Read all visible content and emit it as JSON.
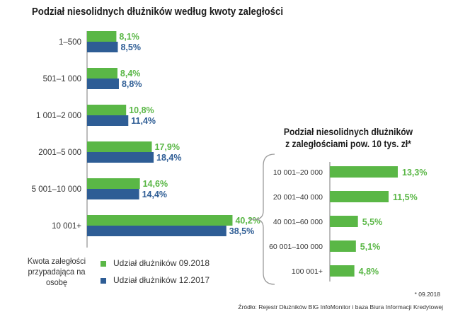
{
  "chart_data": [
    {
      "type": "bar",
      "orientation": "horizontal",
      "title": "Podział niesolidnych dłużników według kwoty zaległości",
      "categories": [
        "1–500",
        "501–1 000",
        "1 001–2 000",
        "2001–5 000",
        "5 001–10 000",
        "10 001+"
      ],
      "series": [
        {
          "name": "Udział dłużników 09.2018",
          "color": "#5ab746",
          "values": [
            8.1,
            8.4,
            10.8,
            17.9,
            14.6,
            40.2
          ],
          "labels": [
            "8,1%",
            "8,4%",
            "10,8%",
            "17,9%",
            "14,6%",
            "40,2%"
          ]
        },
        {
          "name": "Udział dłużników 12.2017",
          "color": "#2e5d95",
          "values": [
            8.5,
            8.8,
            11.4,
            18.4,
            14.4,
            38.5
          ],
          "labels": [
            "8,5%",
            "8,8%",
            "11,4%",
            "18,4%",
            "14,4%",
            "38,5%"
          ]
        }
      ],
      "xlim": [
        0,
        45
      ],
      "legend_title": "Kwota zaległości przypadająca na osobę"
    },
    {
      "type": "bar",
      "orientation": "horizontal",
      "title": "Podział niesolidnych dłużników z zaległościami pow. 10 tys. zł*",
      "title_lines": [
        "Podział niesolidnych dłużników",
        "z zaległościami pow. 10 tys. zł*"
      ],
      "categories": [
        "10 001–20 000",
        "20 001–40 000",
        "40 001–60 000",
        "60 001–100 000",
        "100 001+"
      ],
      "series": [
        {
          "name": "Udział dłużników",
          "color": "#5ab746",
          "values": [
            13.3,
            11.5,
            5.5,
            5.1,
            4.8
          ],
          "labels": [
            "13,3%",
            "11,5%",
            "5,5%",
            "5,1%",
            "4,8%"
          ]
        }
      ],
      "xlim": [
        0,
        14
      ]
    }
  ],
  "footnote": "* 09.2018",
  "source": "Źródło: Rejestr Dłużników BIG InfoMonitor i baza Biura Informacji Kredytowej"
}
